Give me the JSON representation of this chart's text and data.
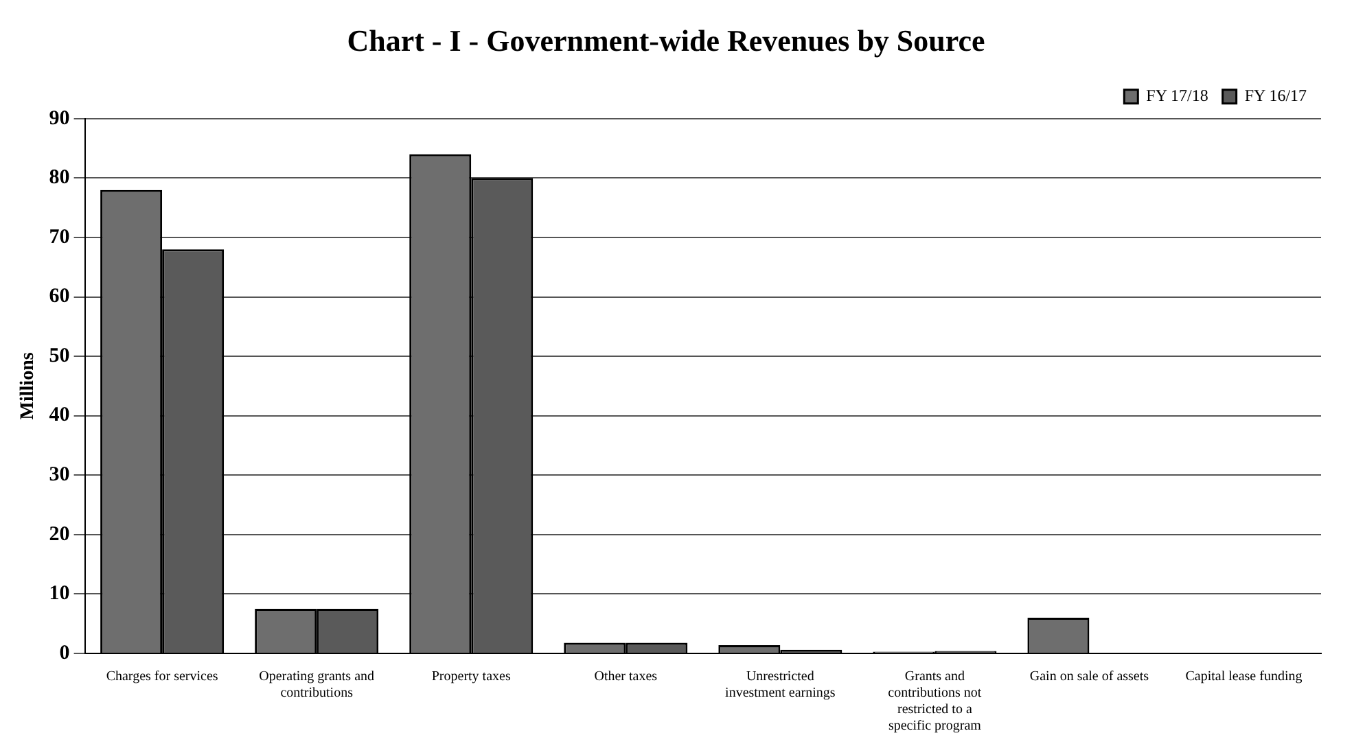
{
  "chart_data": {
    "type": "bar",
    "title": "Chart - I - Government-wide Revenues by Source",
    "ylabel": "Millions",
    "categories": [
      "Charges for services",
      "Operating grants and contributions",
      "Property taxes",
      "Other taxes",
      "Unrestricted investment earnings",
      "Grants and contributions not restricted to a specific program",
      "Gain on sale of assets",
      "Capital lease funding"
    ],
    "series": [
      {
        "name": "FY 17/18",
        "color": "#6e6e6e",
        "values": [
          78,
          7.5,
          84,
          1.8,
          1.4,
          0.3,
          6,
          0
        ]
      },
      {
        "name": "FY 16/17",
        "color": "#5a5a5a",
        "values": [
          68,
          7.5,
          80,
          1.8,
          0.6,
          0.4,
          0,
          0
        ]
      }
    ],
    "ylim": [
      0,
      90
    ],
    "yticks": [
      0,
      10,
      20,
      30,
      40,
      50,
      60,
      70,
      80,
      90
    ],
    "grid": "y",
    "legend": "top right"
  }
}
